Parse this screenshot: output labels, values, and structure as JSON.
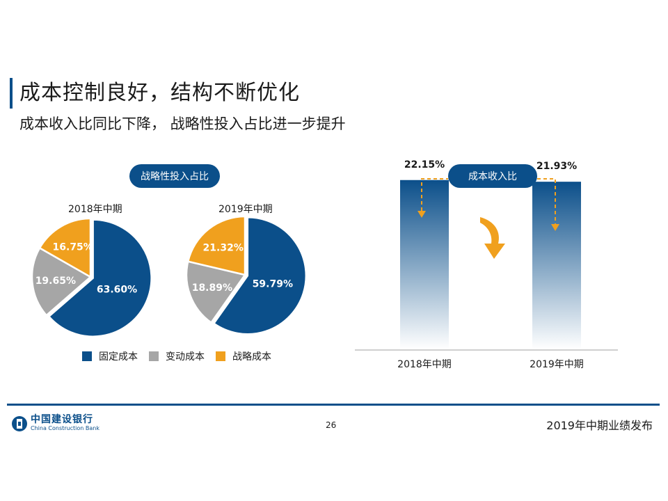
{
  "header": {
    "title": "成本控制良好，结构不断优化",
    "subtitle": "成本收入比同比下降， 战略性投入占比进一步提升"
  },
  "colors": {
    "brand": "#0b4f8a",
    "fixed_cost": "#0b4f8a",
    "variable_cost": "#a6a6a6",
    "strategic_cost": "#f0a01e"
  },
  "chart_data": [
    {
      "type": "pie",
      "title": "战略性投入占比",
      "charts": [
        {
          "label": "2018年中期",
          "slices": [
            {
              "name": "固定成本",
              "value": 63.6,
              "label": "63.60%"
            },
            {
              "name": "变动成本",
              "value": 19.65,
              "label": "19.65%"
            },
            {
              "name": "战略成本",
              "value": 16.75,
              "label": "16.75%"
            }
          ]
        },
        {
          "label": "2019年中期",
          "slices": [
            {
              "name": "固定成本",
              "value": 59.79,
              "label": "59.79%"
            },
            {
              "name": "变动成本",
              "value": 18.89,
              "label": "18.89%"
            },
            {
              "name": "战略成本",
              "value": 21.32,
              "label": "21.32%"
            }
          ]
        }
      ],
      "legend": [
        "固定成本",
        "变动成本",
        "战略成本"
      ],
      "legend_position": "bottom"
    },
    {
      "type": "bar",
      "title": "成本收入比",
      "categories": [
        "2018年中期",
        "2019年中期"
      ],
      "values": [
        22.15,
        21.93
      ],
      "labels": [
        "22.15%",
        "21.93%"
      ],
      "ylim": [
        0,
        27.5
      ],
      "grid": false
    }
  ],
  "footer": {
    "logo_cn": "中国建设银行",
    "logo_en": "China Construction Bank",
    "page": "26",
    "report": "2019年中期业绩发布"
  }
}
